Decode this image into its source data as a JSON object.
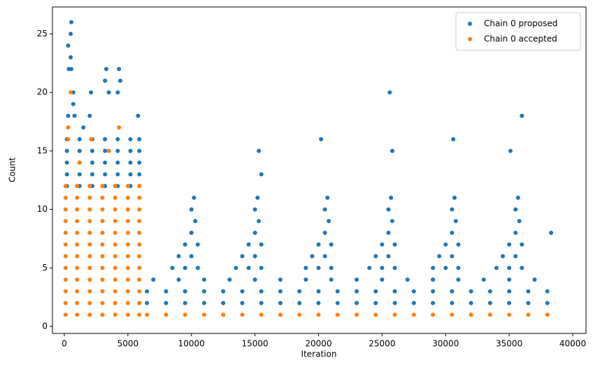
{
  "chart_data": {
    "type": "scatter",
    "xlabel": "Iteration",
    "ylabel": "Count",
    "xlim": [
      -935,
      41045
    ],
    "ylim": [
      -0.6,
      27.3
    ],
    "xticks": [
      0,
      5000,
      10000,
      15000,
      20000,
      25000,
      30000,
      35000,
      40000
    ],
    "yticks": [
      0,
      5,
      10,
      15,
      20,
      25
    ],
    "legend": "upper right",
    "series": [
      {
        "name": "Chain 0 proposed",
        "color": "#1f77b4",
        "x": [
          200,
          200,
          200,
          200,
          200,
          1200,
          1200,
          1200,
          1200,
          1200,
          2200,
          2200,
          2200,
          2200,
          2200,
          3200,
          3200,
          3200,
          3200,
          3200,
          4200,
          4200,
          4200,
          4200,
          4200,
          5200,
          5200,
          5200,
          5200,
          5200,
          5900,
          5900,
          5900,
          5900,
          5900,
          300,
          500,
          550,
          500,
          350,
          550,
          700,
          2100,
          3300,
          4300,
          3200,
          4400,
          3500,
          4200,
          700,
          800,
          5800,
          2000,
          300,
          1500,
          6500,
          8000,
          9500,
          11000,
          12500,
          14000,
          15500,
          17000,
          18500,
          20000,
          21500,
          23000,
          24500,
          26000,
          27500,
          29000,
          30500,
          32000,
          33500,
          35000,
          36500,
          38000,
          6500,
          8000,
          9500,
          11000,
          12500,
          14000,
          15500,
          17000,
          18500,
          20000,
          21500,
          23000,
          24500,
          26000,
          27500,
          29000,
          30500,
          32000,
          33500,
          35000,
          36500,
          38000,
          7000,
          9000,
          11000,
          13000,
          15000,
          17000,
          19000,
          21000,
          23000,
          25000,
          27000,
          29000,
          31000,
          33000,
          35000,
          37000,
          8500,
          9500,
          10500,
          9000,
          10000,
          9500,
          10500,
          10000,
          10300,
          10000,
          10200,
          13500,
          14500,
          15500,
          14000,
          15000,
          14500,
          15500,
          15000,
          15300,
          15000,
          15200,
          19000,
          20000,
          21000,
          19500,
          20500,
          20000,
          21000,
          20500,
          20800,
          20500,
          20700,
          24000,
          25000,
          26000,
          24500,
          25500,
          25000,
          26000,
          25500,
          25800,
          25500,
          25700,
          29000,
          30000,
          31000,
          29500,
          30500,
          30000,
          31000,
          30500,
          30800,
          30500,
          30700,
          34000,
          35000,
          36000,
          34500,
          35500,
          35000,
          36000,
          35500,
          35800,
          35500,
          35700,
          15500,
          15300,
          20200,
          25600,
          30600,
          36000,
          38300,
          35100,
          25800
        ],
        "y": [
          12,
          13,
          14,
          15,
          16,
          12,
          13,
          14,
          15,
          16,
          12,
          13,
          14,
          15,
          16,
          12,
          13,
          14,
          15,
          16,
          12,
          13,
          14,
          15,
          16,
          12,
          13,
          14,
          15,
          16,
          12,
          13,
          14,
          15,
          16,
          24,
          25,
          26,
          23,
          22,
          22,
          20,
          20,
          22,
          22,
          21,
          21,
          20,
          20,
          19,
          18,
          18,
          18,
          18,
          17,
          2,
          2,
          2,
          2,
          2,
          2,
          2,
          2,
          2,
          2,
          2,
          2,
          2,
          2,
          2,
          2,
          2,
          2,
          2,
          2,
          2,
          2,
          3,
          3,
          3,
          3,
          3,
          3,
          3,
          3,
          3,
          3,
          3,
          3,
          3,
          3,
          3,
          3,
          3,
          3,
          3,
          3,
          3,
          3,
          4,
          4,
          4,
          4,
          4,
          4,
          4,
          4,
          4,
          4,
          4,
          4,
          4,
          4,
          4,
          4,
          5,
          5,
          5,
          6,
          6,
          7,
          7,
          8,
          9,
          10,
          11,
          5,
          5,
          5,
          6,
          6,
          7,
          7,
          8,
          9,
          10,
          11,
          5,
          5,
          5,
          6,
          6,
          7,
          7,
          8,
          9,
          10,
          11,
          5,
          5,
          5,
          6,
          6,
          7,
          7,
          8,
          9,
          10,
          11,
          5,
          5,
          5,
          6,
          6,
          7,
          7,
          8,
          9,
          10,
          11,
          5,
          5,
          5,
          6,
          6,
          7,
          7,
          8,
          9,
          10,
          11,
          13,
          15,
          16,
          20,
          16,
          18,
          8,
          15,
          15
        ]
      },
      {
        "name": "Chain 0 accepted",
        "color": "#ff7f0e",
        "x": [
          100,
          100,
          100,
          100,
          100,
          100,
          100,
          100,
          100,
          100,
          100,
          100,
          1000,
          1000,
          1000,
          1000,
          1000,
          1000,
          1000,
          1000,
          1000,
          1000,
          1000,
          1000,
          2000,
          2000,
          2000,
          2000,
          2000,
          2000,
          2000,
          2000,
          2000,
          2000,
          2000,
          2000,
          3000,
          3000,
          3000,
          3000,
          3000,
          3000,
          3000,
          3000,
          3000,
          3000,
          3000,
          3000,
          4000,
          4000,
          4000,
          4000,
          4000,
          4000,
          4000,
          4000,
          4000,
          4000,
          4000,
          4000,
          5000,
          5000,
          5000,
          5000,
          5000,
          5000,
          5000,
          5000,
          5000,
          5000,
          5000,
          5000,
          5900,
          5900,
          5900,
          5900,
          5900,
          5900,
          5900,
          5900,
          5900,
          5900,
          5900,
          5900,
          500,
          300,
          4300,
          2100,
          300,
          1200,
          3500,
          6500,
          8000,
          9500,
          11000,
          12500,
          14000,
          15500,
          17000,
          18500,
          20000,
          21500,
          23000,
          24500,
          26000,
          27500,
          29000,
          30500,
          32000,
          33500,
          35000,
          36500,
          38000
        ],
        "y": [
          1,
          2,
          3,
          4,
          5,
          6,
          7,
          8,
          9,
          10,
          11,
          12,
          1,
          2,
          3,
          4,
          5,
          6,
          7,
          8,
          9,
          10,
          11,
          12,
          1,
          2,
          3,
          4,
          5,
          6,
          7,
          8,
          9,
          10,
          11,
          12,
          1,
          2,
          3,
          4,
          5,
          6,
          7,
          8,
          9,
          10,
          11,
          12,
          1,
          2,
          3,
          4,
          5,
          6,
          7,
          8,
          9,
          10,
          11,
          12,
          1,
          2,
          3,
          4,
          5,
          6,
          7,
          8,
          9,
          10,
          11,
          12,
          1,
          2,
          3,
          4,
          5,
          6,
          7,
          8,
          9,
          10,
          11,
          12,
          20,
          17,
          17,
          16,
          16,
          14,
          15,
          1,
          1,
          1,
          1,
          1,
          1,
          1,
          1,
          1,
          1,
          1,
          1,
          1,
          1,
          1,
          1,
          1,
          1,
          1,
          1,
          1,
          1
        ]
      }
    ]
  }
}
